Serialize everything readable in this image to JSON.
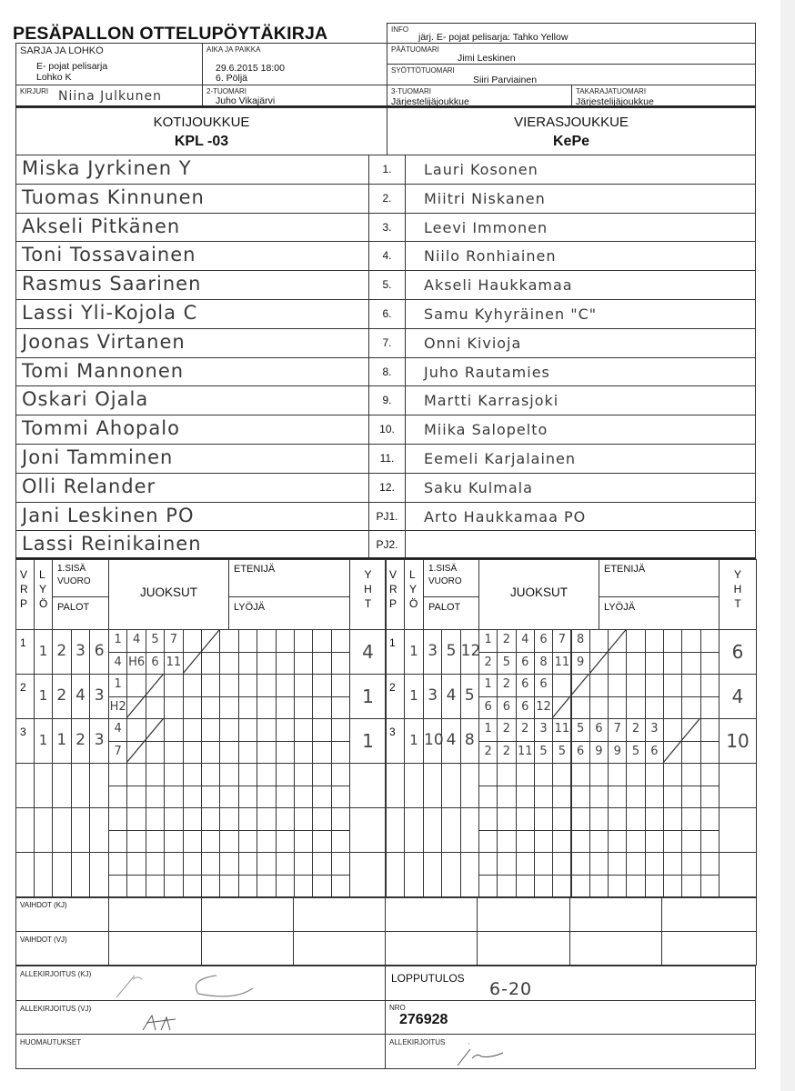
{
  "header": {
    "title": "PESÄPALLON OTTELUPÖYTÄKIRJA",
    "sarja": {
      "label": "SARJA JA LOHKO",
      "line1": "E- pojat pelisarja",
      "line2": "Lohko K"
    },
    "aika": {
      "label": "AIKA JA PAIKKA",
      "line1": "29.6.2015 18:00",
      "line2": "6. Pöljä"
    },
    "kirjuri": {
      "label": "KIRJURI",
      "value": "Niina Julkunen"
    },
    "tuomari2": {
      "label": "2-TUOMARI",
      "value": "Juho Vikajärvi"
    },
    "info": {
      "label": "INFO",
      "value": "järj. E- pojat pelisarja: Tahko Yellow"
    },
    "paatuomari": {
      "label": "PÄÄTUOMARI",
      "value": "Jimi Leskinen"
    },
    "syottotuomari": {
      "label": "SYÖTTÖTUOMARI",
      "value": "Siiri Parviainen"
    },
    "tuomari3": {
      "label": "3-TUOMARI",
      "value": "Järjestelijäjoukkue"
    },
    "takarajatuomari": {
      "label": "TAKARAJATUOMARI",
      "value": "Järjestelijäjoukkue"
    }
  },
  "teams": {
    "home": {
      "label": "KOTIJOUKKUE",
      "name": "KPL -03"
    },
    "away": {
      "label": "VIERASJOUKKUE",
      "name": "KePe"
    }
  },
  "roster": {
    "numbers": [
      "1.",
      "2.",
      "3.",
      "4.",
      "5.",
      "6.",
      "7.",
      "8.",
      "9.",
      "10.",
      "11.",
      "12.",
      "PJ1.",
      "PJ2."
    ],
    "home": [
      "Miska Jyrkinen  Y",
      "Tuomas Kinnunen",
      "Akseli Pitkänen",
      "Toni Tossavainen",
      "Rasmus Saarinen",
      "Lassi Yli-Kojola   C",
      "Joonas Virtanen",
      "Tomi Mannonen",
      "Oskari Ojala",
      "Tommi Ahopalo",
      "Joni Tamminen",
      "Olli Relander",
      "Jani Leskinen  PO",
      "Lassi Reinikainen"
    ],
    "away": [
      "Lauri Kosonen",
      "Miitri Niskanen",
      "Leevi Immonen",
      "Niilo Ronhiainen",
      "Akseli Haukkamaa",
      "Samu Kyhyräinen        \"C\"",
      "Onni Kivioja",
      "Juho Rautamies",
      "Martti Karrasjoki",
      "Miika Salopelto",
      "Eemeli Karjalainen",
      "Saku Kulmala",
      "Arto Haukkamaa       PO",
      ""
    ]
  },
  "scoring_headers": {
    "vrp": [
      "V",
      "R",
      "P"
    ],
    "lyo": [
      "L",
      "Y",
      "Ö"
    ],
    "sisa": "1.SISÄ",
    "vuoro": "VUORO",
    "palot": "PALOT",
    "juoksut": "JUOKSUT",
    "etenija": "ETENIJÄ",
    "lyoja": "LYÖJÄ",
    "yht": [
      "Y",
      "H",
      "T"
    ]
  },
  "home_innings": [
    {
      "vrp": "1",
      "lyo": "1",
      "palot": [
        "2",
        "3",
        "6"
      ],
      "top": [
        "1",
        "4",
        "5",
        "7"
      ],
      "bottom": [
        "4",
        "H6",
        "6",
        "11"
      ],
      "yht": "4"
    },
    {
      "vrp": "2",
      "lyo": "1",
      "palot": [
        "2",
        "4",
        "3"
      ],
      "top": [
        "1"
      ],
      "bottom": [
        "H2"
      ],
      "yht": "1"
    },
    {
      "vrp": "3",
      "lyo": "1",
      "palot": [
        "1",
        "2",
        "3"
      ],
      "top": [
        "4"
      ],
      "bottom": [
        "7"
      ],
      "yht": "1"
    }
  ],
  "away_innings": [
    {
      "vrp": "1",
      "lyo": "1",
      "palot": [
        "3",
        "5",
        "12"
      ],
      "top": [
        "1",
        "2",
        "4",
        "6",
        "7",
        "8"
      ],
      "bottom": [
        "2",
        "5",
        "6",
        "8",
        "11",
        "9"
      ],
      "yht": "6"
    },
    {
      "vrp": "2",
      "lyo": "1",
      "palot": [
        "3",
        "4",
        "5"
      ],
      "top": [
        "1",
        "2",
        "6",
        "6"
      ],
      "bottom": [
        "6",
        "6",
        "6",
        "12"
      ],
      "yht": "4"
    },
    {
      "vrp": "3",
      "lyo": "1",
      "palot": [
        "10",
        "4",
        "8"
      ],
      "top": [
        "1",
        "2",
        "2",
        "3",
        "11",
        "5",
        "6",
        "7",
        "2",
        "3"
      ],
      "bottom": [
        "2",
        "2",
        "11",
        "5",
        "5",
        "6",
        "9",
        "9",
        "5",
        "6"
      ],
      "yht": "10"
    }
  ],
  "footer": {
    "vaihdot_kj": "VAIHDOT (KJ)",
    "vaihdot_vj": "VAIHDOT (VJ)",
    "allekirjoitus_kj": "ALLEKIRJOITUS (KJ)",
    "allekirjoitus_vj": "ALLEKIRJOITUS (VJ)",
    "huomautukset": "HUOMAUTUKSET",
    "lopputulos_label": "LOPPUTULOS",
    "lopputulos": "6-20",
    "nro_label": "NRO",
    "nro": "276928",
    "allekirjoitus": "ALLEKIRJOITUS"
  }
}
